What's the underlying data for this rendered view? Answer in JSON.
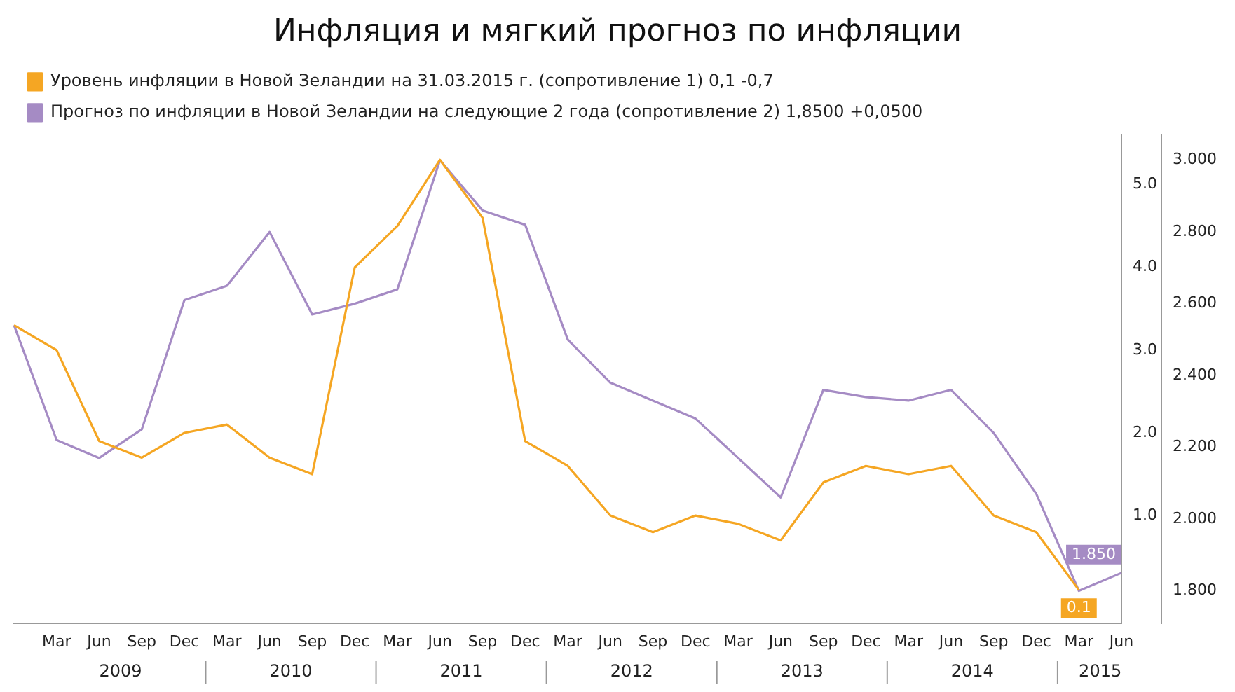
{
  "chart_data": {
    "type": "line",
    "title": "Инфляция и мягкий прогноз по инфляции",
    "categories": [
      null,
      "Mar",
      "Jun",
      "Sep",
      "Dec",
      "Mar",
      "Jun",
      "Sep",
      "Dec",
      "Mar",
      "Jun",
      "Sep",
      "Dec",
      "Mar",
      "Jun",
      "Sep",
      "Dec",
      "Mar",
      "Jun",
      "Sep",
      "Dec",
      "Mar",
      "Jun",
      "Sep",
      "Dec",
      "Mar",
      "Jun"
    ],
    "series": [
      {
        "name": "Уровень инфляции в Новой Зеландии на 31.03.2015 г. (сопротивление 1) 0,1 -0,7",
        "color": "#f5a623",
        "values": [
          3.3,
          3.0,
          1.9,
          1.7,
          2.0,
          2.1,
          1.7,
          1.5,
          4.0,
          4.5,
          5.3,
          4.6,
          1.9,
          1.6,
          1.0,
          0.8,
          1.0,
          0.9,
          0.7,
          1.4,
          1.6,
          1.5,
          1.6,
          1.0,
          0.8,
          0.1,
          null
        ],
        "value_labels": [
          null,
          null,
          null,
          null,
          null,
          null,
          null,
          null,
          null,
          null,
          null,
          null,
          null,
          null,
          null,
          null,
          null,
          null,
          null,
          null,
          null,
          null,
          null,
          null,
          null,
          "0.1",
          null
        ]
      },
      {
        "name": "Прогноз по инфляции в Новой Зеландии на следующие 2 года (сопротивление 2) 1,8500 +0,0500",
        "color": "#a58bc4",
        "axis": "y2",
        "values": [
          2.54,
          2.22,
          2.17,
          2.25,
          2.61,
          2.65,
          2.8,
          2.57,
          2.6,
          2.64,
          3.0,
          2.86,
          2.82,
          2.5,
          2.38,
          2.33,
          2.28,
          2.17,
          2.06,
          2.36,
          2.34,
          2.33,
          2.36,
          2.24,
          2.07,
          1.8,
          1.85
        ],
        "value_labels": [
          null,
          null,
          null,
          null,
          null,
          null,
          null,
          null,
          null,
          null,
          null,
          null,
          null,
          null,
          null,
          null,
          null,
          null,
          null,
          null,
          null,
          null,
          null,
          null,
          null,
          null,
          "1.850"
        ]
      }
    ],
    "ylim": [
      -0.3,
      5.6
    ],
    "yticks": [
      {
        "value": 1,
        "label": "1.0"
      },
      {
        "value": 2,
        "label": "2.0"
      },
      {
        "value": 3,
        "label": "3.0"
      },
      {
        "value": 4,
        "label": "4.0"
      },
      {
        "value": 5,
        "label": "5.0"
      }
    ],
    "y2lim": [
      1.71,
      3.07
    ],
    "y2ticks": [
      {
        "value": 1.8,
        "label": "1.800"
      },
      {
        "value": 2,
        "label": "2.000"
      },
      {
        "value": 2.2,
        "label": "2.200"
      },
      {
        "value": 2.4,
        "label": "2.400"
      },
      {
        "value": 2.6,
        "label": "2.600"
      },
      {
        "value": 2.8,
        "label": "2.800"
      },
      {
        "value": 3,
        "label": "3.000"
      }
    ],
    "annotations": [
      "2009",
      "2010",
      "2011",
      "2012",
      "2013",
      "2014",
      "2015"
    ],
    "legend": "top left",
    "grid": false,
    "marker": "none",
    "line_style": "solid"
  }
}
